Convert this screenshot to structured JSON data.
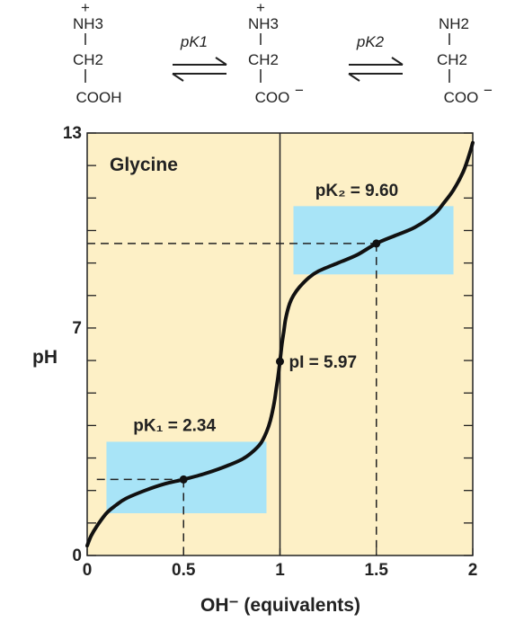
{
  "species": [
    {
      "amine": "NH3",
      "amine_charge": "+",
      "carbon": "CH2",
      "acid": "COOH"
    },
    {
      "amine": "NH3",
      "amine_charge": "+",
      "carbon": "CH2",
      "acid": "COO",
      "acid_charge": "−"
    },
    {
      "amine": "NH2",
      "carbon": "CH2",
      "acid": "COO",
      "acid_charge": "−"
    }
  ],
  "equilibria": [
    "pK1",
    "pK2"
  ],
  "chart_data": {
    "type": "line",
    "title": "Glycine",
    "xlabel": "OH⁻ (equivalents)",
    "ylabel": "pH",
    "xlim": [
      0,
      2
    ],
    "ylim": [
      0,
      13
    ],
    "x_ticks": [
      0,
      0.5,
      1,
      1.5,
      2
    ],
    "x_tick_labels": [
      "0",
      "0.5",
      "1",
      "1.5",
      "2"
    ],
    "y_tick_labels": [
      {
        "value": 0,
        "label": "0"
      },
      {
        "value": 7,
        "label": "7"
      },
      {
        "value": 13,
        "label": "13"
      }
    ],
    "grid": false,
    "background": "#fdf0c6",
    "buffer_color": "#a8e4f7",
    "series": [
      {
        "x": [
          0.0,
          0.02,
          0.05,
          0.1,
          0.15,
          0.2,
          0.3,
          0.4,
          0.5,
          0.6,
          0.7,
          0.8,
          0.85,
          0.9,
          0.93,
          0.95,
          0.97,
          0.98,
          0.99,
          1.0,
          1.01,
          1.02,
          1.03,
          1.05,
          1.07,
          1.1,
          1.15,
          1.2,
          1.3,
          1.4,
          1.5,
          1.6,
          1.7,
          1.8,
          1.85,
          1.9,
          1.95,
          1.98,
          2.0
        ],
        "y": [
          0.3,
          0.6,
          0.9,
          1.3,
          1.55,
          1.75,
          2.0,
          2.2,
          2.34,
          2.5,
          2.7,
          2.95,
          3.15,
          3.45,
          3.8,
          4.15,
          4.7,
          5.1,
          5.5,
          5.97,
          6.5,
          6.9,
          7.3,
          7.75,
          8.0,
          8.25,
          8.55,
          8.75,
          9.0,
          9.25,
          9.6,
          9.85,
          10.1,
          10.5,
          10.85,
          11.25,
          11.8,
          12.3,
          12.7
        ]
      }
    ],
    "buffer_regions": [
      {
        "x": [
          0.1,
          0.93
        ],
        "y": [
          1.3,
          3.5
        ]
      },
      {
        "x": [
          1.07,
          1.9
        ],
        "y": [
          8.65,
          10.75
        ]
      }
    ],
    "points": [
      {
        "x": 0.5,
        "y": 2.34,
        "label": "pK₁ = 2.34"
      },
      {
        "x": 1.0,
        "y": 5.97,
        "label": "pI = 5.97"
      },
      {
        "x": 1.5,
        "y": 9.6,
        "label": "pK₂ = 9.60"
      }
    ]
  }
}
